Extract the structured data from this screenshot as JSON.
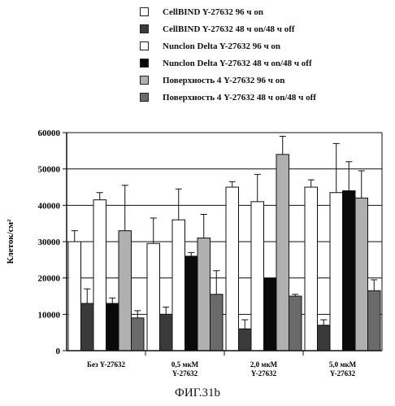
{
  "legend": [
    {
      "name": "CellBIND Y-27632 96 ч on",
      "color": "#ffffff"
    },
    {
      "name": "CellBIND Y-27632 48 ч on/48 ч off",
      "color": "#3a3a3a"
    },
    {
      "name": "Nunclon Delta Y-27632 96 ч on",
      "color": "#ffffff"
    },
    {
      "name": "Nunclon Delta Y-27632 48 ч on/48 ч off",
      "color": "#0a0a0a"
    },
    {
      "name": "Поверхность 4 Y-27632 96 ч on",
      "color": "#b0b0b0"
    },
    {
      "name": "Поверхность 4 Y-27632 48 ч on/48 ч off",
      "color": "#6a6a6a"
    }
  ],
  "caption": "ФИГ.31b",
  "chart_data": {
    "type": "bar",
    "ylabel": "Клеток/см²",
    "ylim": [
      0,
      60000
    ],
    "yticks": [
      "0",
      "10000",
      "20000",
      "30000",
      "40000",
      "50000",
      "60000"
    ],
    "grid": true,
    "categories": [
      [
        "Без Y-27632"
      ],
      [
        "0,5 мкМ",
        "Y-27632"
      ],
      [
        "2,0 мкМ",
        "Y-27632"
      ],
      [
        "5,0 мкМ",
        "Y-27632"
      ]
    ],
    "series": [
      {
        "name": "CellBIND Y-27632 96 ч on",
        "values": [
          30000,
          29500,
          45000,
          45000
        ],
        "errors": [
          3000,
          7000,
          1500,
          2000
        ]
      },
      {
        "name": "CellBIND Y-27632 48 ч on/48 ч off",
        "values": [
          13000,
          10000,
          6000,
          7000
        ],
        "errors": [
          4000,
          2000,
          2500,
          1500
        ]
      },
      {
        "name": "Nunclon Delta Y-27632 96 ч on",
        "values": [
          41500,
          36000,
          41000,
          43500
        ],
        "errors": [
          2000,
          8500,
          7500,
          13500
        ]
      },
      {
        "name": "Nunclon Delta Y-27632 48 ч on/48 ч off",
        "values": [
          13000,
          26000,
          20000,
          44000
        ],
        "errors": [
          1500,
          1000,
          0,
          8000
        ]
      },
      {
        "name": "Поверхность 4 Y-27632 96 ч on",
        "values": [
          33000,
          31000,
          54000,
          42000
        ],
        "errors": [
          12500,
          6500,
          5000,
          7500
        ]
      },
      {
        "name": "Поверхность 4 Y-27632 48 ч on/48 ч off",
        "values": [
          9000,
          15500,
          15000,
          16500
        ],
        "errors": [
          2000,
          6500,
          500,
          3000
        ]
      }
    ]
  }
}
